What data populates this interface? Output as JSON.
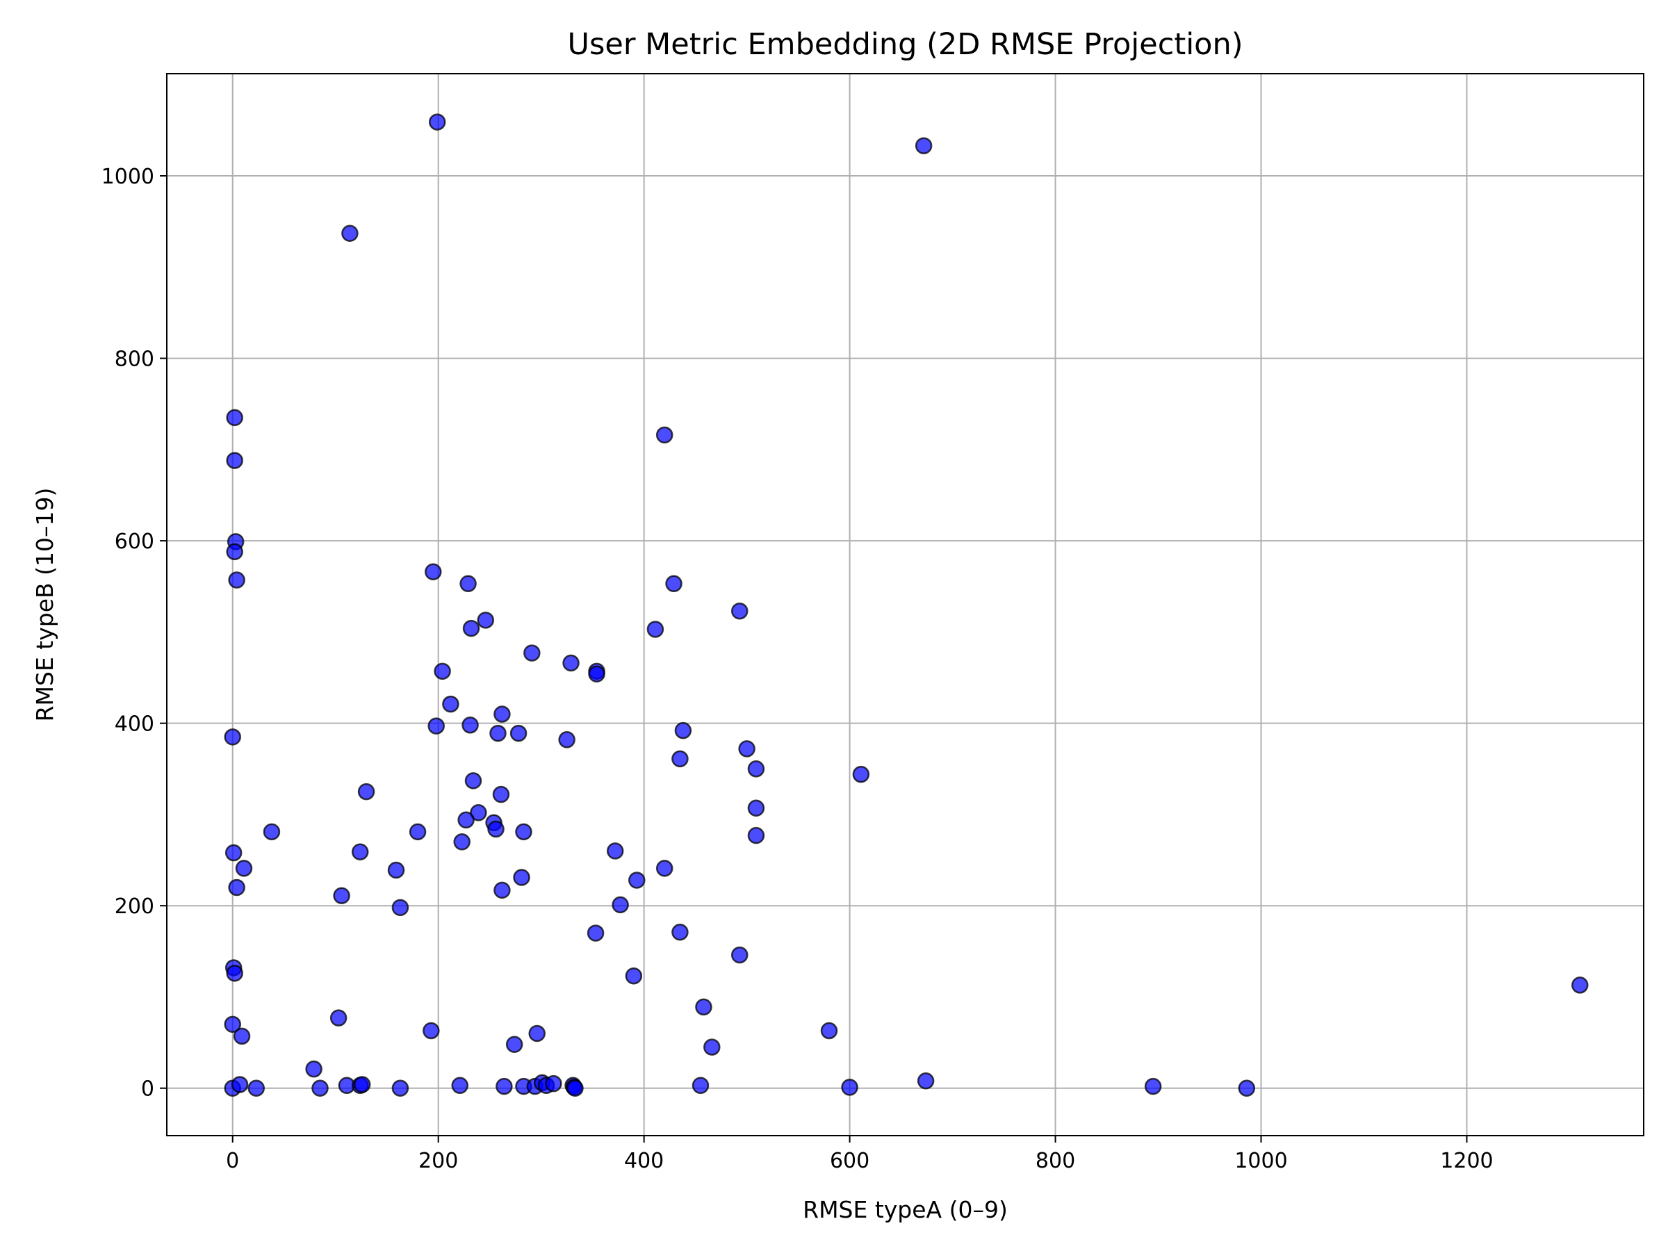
{
  "chart_data": {
    "type": "scatter",
    "title": "User Metric Embedding (2D RMSE Projection)",
    "xlabel": "RMSE typeA (0–9)",
    "ylabel": "RMSE typeB (10–19)",
    "xlim": [
      -64,
      1372
    ],
    "ylim": [
      -52,
      1112
    ],
    "x_ticks": [
      0,
      200,
      400,
      600,
      800,
      1000,
      1200
    ],
    "y_ticks": [
      0,
      200,
      400,
      600,
      800,
      1000
    ],
    "grid": true,
    "marker_color": "#0000ff",
    "marker_edge_color": "#000000",
    "series": [
      {
        "x": [
          199,
          672,
          114,
          2,
          2,
          420,
          3,
          2,
          4,
          195,
          429,
          229,
          493,
          246,
          232,
          411,
          291,
          329,
          354,
          354,
          204,
          212,
          262,
          198,
          231,
          0,
          258,
          278,
          325,
          438,
          435,
          500,
          509,
          611,
          234,
          130,
          261,
          239,
          509,
          227,
          254,
          256,
          180,
          38,
          283,
          223,
          509,
          372,
          124,
          1,
          11,
          159,
          420,
          4,
          106,
          281,
          393,
          262,
          163,
          377,
          353,
          435,
          1,
          2,
          493,
          390,
          1310,
          458,
          103,
          0,
          9,
          580,
          193,
          296,
          274,
          466,
          79,
          674,
          0,
          85,
          7,
          23,
          111,
          124,
          126,
          163,
          221,
          264,
          283,
          294,
          301,
          305,
          312,
          331,
          332,
          333,
          455,
          600,
          895,
          986
        ],
        "y": [
          1059,
          1033,
          937,
          735,
          688,
          716,
          599,
          588,
          557,
          566,
          553,
          553,
          523,
          513,
          504,
          503,
          477,
          466,
          457,
          454,
          457,
          421,
          410,
          397,
          398,
          385,
          389,
          389,
          382,
          392,
          361,
          372,
          350,
          344,
          337,
          325,
          322,
          302,
          307,
          294,
          291,
          284,
          281,
          281,
          281,
          270,
          277,
          260,
          259,
          258,
          241,
          239,
          241,
          220,
          211,
          231,
          228,
          217,
          198,
          201,
          170,
          171,
          132,
          126,
          146,
          123,
          113,
          89,
          77,
          70,
          57,
          63,
          63,
          60,
          48,
          45,
          21,
          8,
          0,
          0,
          4,
          0,
          3,
          3,
          4,
          0,
          3,
          2,
          2,
          2,
          6,
          3,
          5,
          3,
          1,
          0,
          3,
          1,
          2,
          0
        ]
      }
    ]
  }
}
